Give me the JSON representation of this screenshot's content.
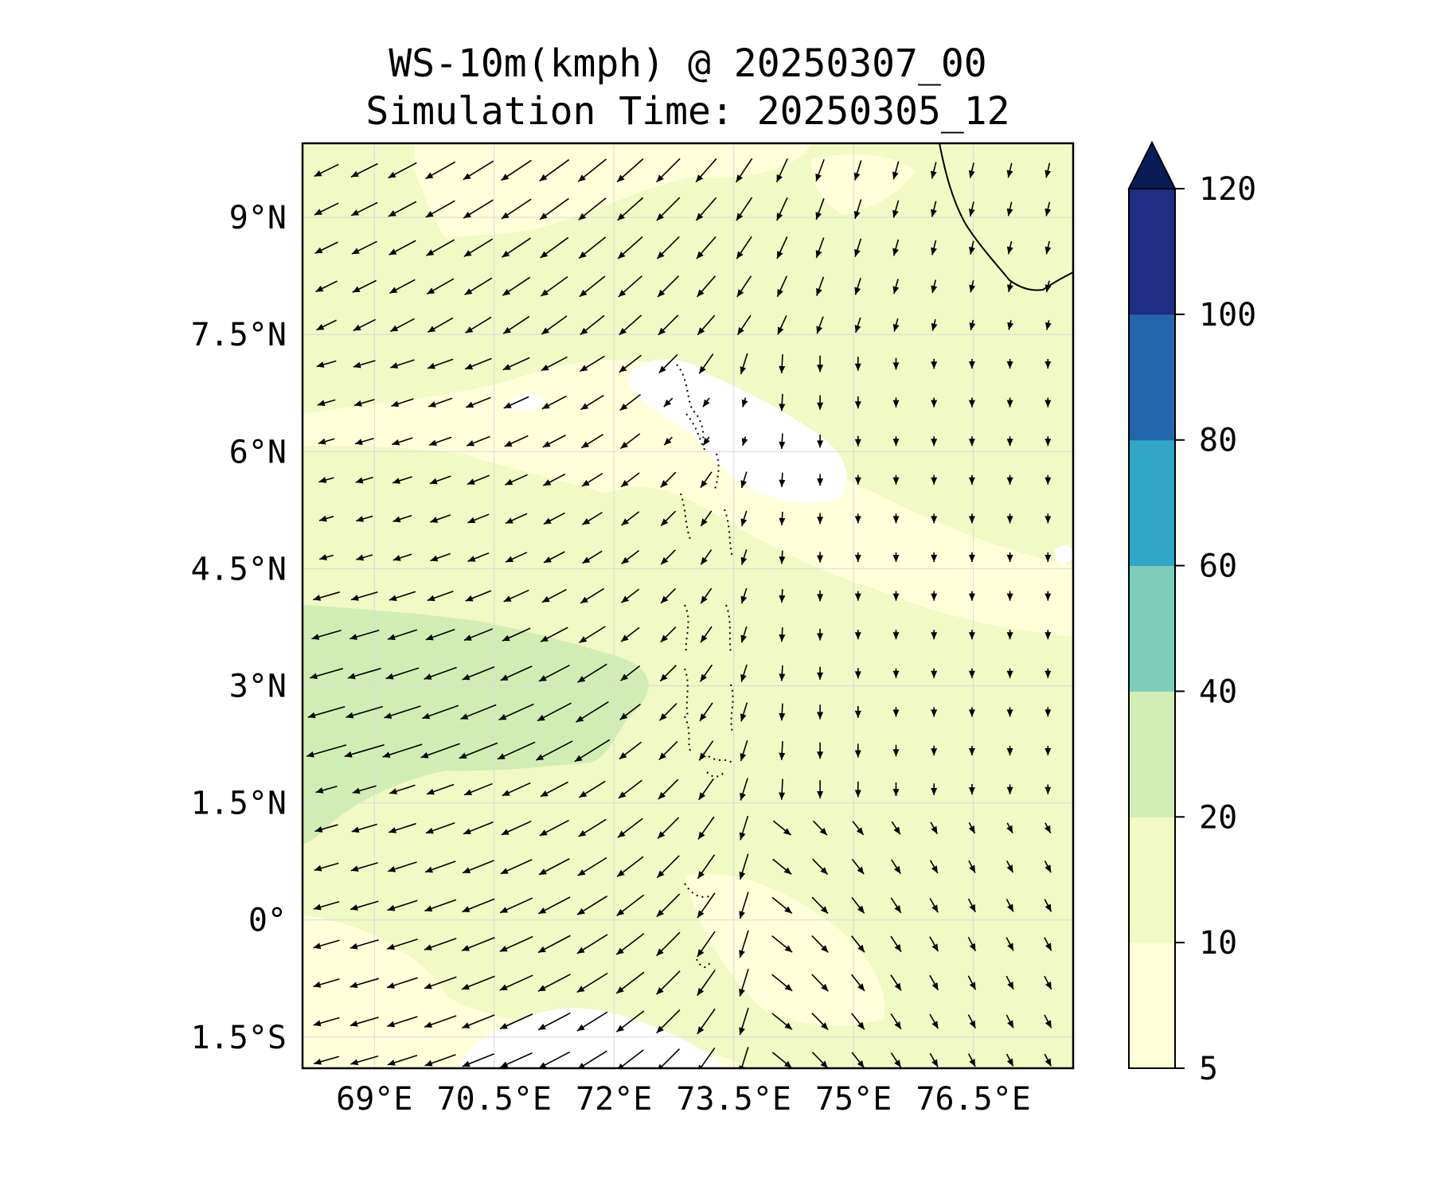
{
  "chart_data": {
    "type": "contour-map-with-wind-vectors",
    "title": "WS-10m(kmph) @ 20250307_00",
    "subtitle": "Simulation Time: 20250305_12",
    "extent": {
      "lon": [
        68.1,
        77.75
      ],
      "lat": [
        -1.9,
        9.95
      ]
    },
    "x_ticks": [
      {
        "value": 69,
        "label": "69°E"
      },
      {
        "value": 70.5,
        "label": "70.5°E"
      },
      {
        "value": 72,
        "label": "72°E"
      },
      {
        "value": 73.5,
        "label": "73.5°E"
      },
      {
        "value": 75,
        "label": "75°E"
      },
      {
        "value": 76.5,
        "label": "76.5°E"
      }
    ],
    "y_ticks": [
      {
        "value": 9,
        "label": "9°N"
      },
      {
        "value": 7.5,
        "label": "7.5°N"
      },
      {
        "value": 6,
        "label": "6°N"
      },
      {
        "value": 4.5,
        "label": "4.5°N"
      },
      {
        "value": 3,
        "label": "3°N"
      },
      {
        "value": 1.5,
        "label": "1.5°N"
      },
      {
        "value": 0,
        "label": "0°"
      },
      {
        "value": -1.5,
        "label": "1.5°S"
      }
    ],
    "colorbar": {
      "levels": [
        {
          "label": "5",
          "color": "#ffffd9"
        },
        {
          "label": "10",
          "color": "#f1f9c4"
        },
        {
          "label": "20",
          "color": "#d2edb3"
        },
        {
          "label": "40",
          "color": "#7ecdbb"
        },
        {
          "label": "60",
          "color": "#30a7c5"
        },
        {
          "label": "80",
          "color": "#2266ae"
        },
        {
          "label": "100",
          "color": "#1f2d84"
        },
        {
          "label": "120",
          "color": "#081d58"
        }
      ],
      "extend": "max"
    },
    "grid": true
  }
}
